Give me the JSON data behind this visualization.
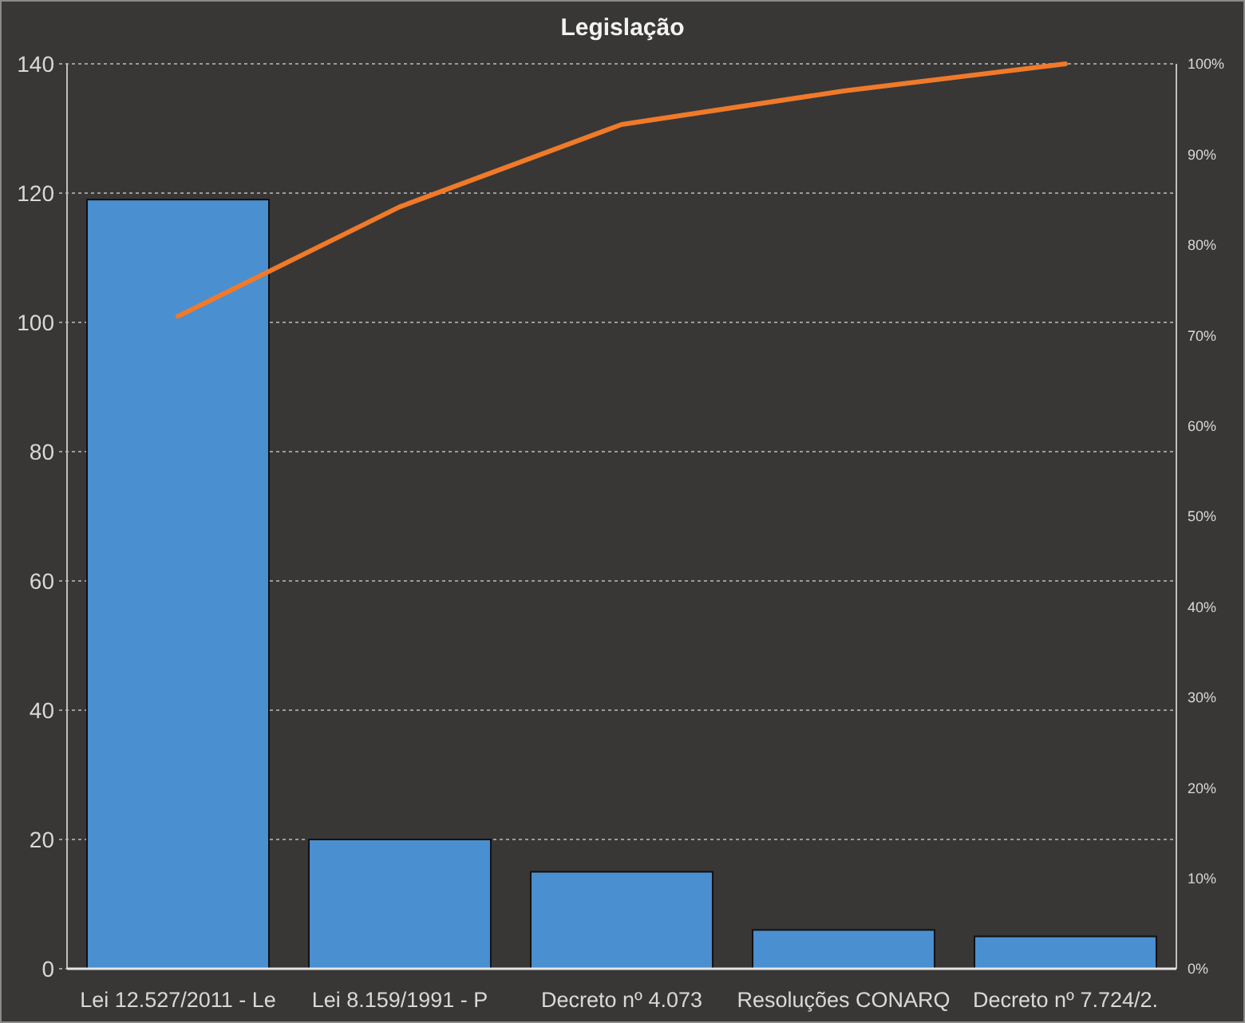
{
  "chart_data": {
    "type": "bar",
    "title": "Legislação",
    "categories": [
      "Lei 12.527/2011 - Le",
      "Lei 8.159/1991 - P",
      "Decreto nº 4.073",
      "Resoluções CONARQ",
      "Decreto nº 7.724/2."
    ],
    "series": [
      {
        "color": "#4a8fd0",
        "values": [
          119,
          20,
          15,
          6,
          5
        ]
      },
      {
        "type": "line",
        "axis": "y2",
        "color": "#f07a2a",
        "values": [
          72.1,
          84.2,
          93.3,
          97,
          100
        ]
      }
    ],
    "ylim": [
      0,
      140
    ],
    "yticks": [
      0,
      20,
      40,
      60,
      80,
      100,
      120,
      140
    ],
    "y2lim": [
      0,
      100
    ],
    "y2ticks": [
      {
        "value": 0,
        "label": "0%"
      },
      {
        "value": 10,
        "label": "10%"
      },
      {
        "value": 20,
        "label": "20%"
      },
      {
        "value": 30,
        "label": "30%"
      },
      {
        "value": 40,
        "label": "40%"
      },
      {
        "value": 50,
        "label": "50%"
      },
      {
        "value": 60,
        "label": "60%"
      },
      {
        "value": 70,
        "label": "70%"
      },
      {
        "value": 80,
        "label": "80%"
      },
      {
        "value": 90,
        "label": "90%"
      },
      {
        "value": 100,
        "label": "100%"
      }
    ],
    "grid": "y"
  }
}
